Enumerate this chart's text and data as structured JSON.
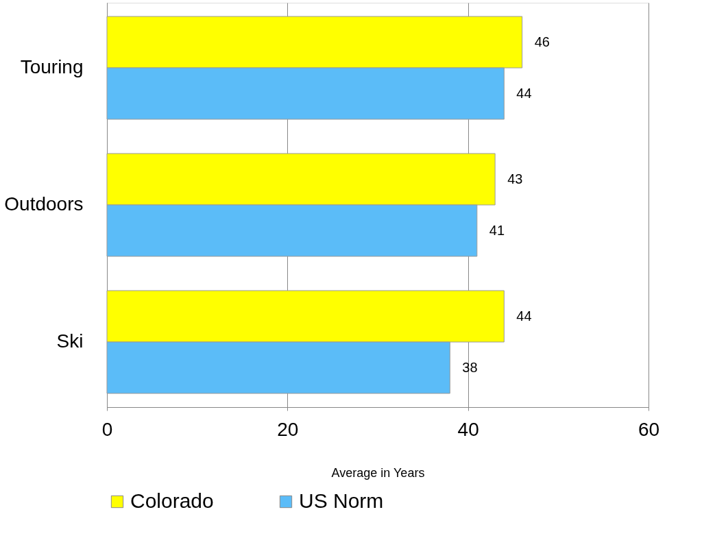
{
  "chart_data": {
    "type": "bar",
    "orientation": "horizontal",
    "categories": [
      "Touring",
      "Outdoors",
      "Ski"
    ],
    "series": [
      {
        "name": "Colorado",
        "color": "#ffff00",
        "values": [
          46,
          43,
          44
        ]
      },
      {
        "name": "US Norm",
        "color": "#5bbcf8",
        "values": [
          44,
          41,
          38
        ]
      }
    ],
    "xlabel": "Average in Years",
    "xlim": [
      0,
      60
    ],
    "xticks": [
      0,
      20,
      40,
      60
    ],
    "grid": "x",
    "legend": "bottom",
    "data_labels": true
  }
}
